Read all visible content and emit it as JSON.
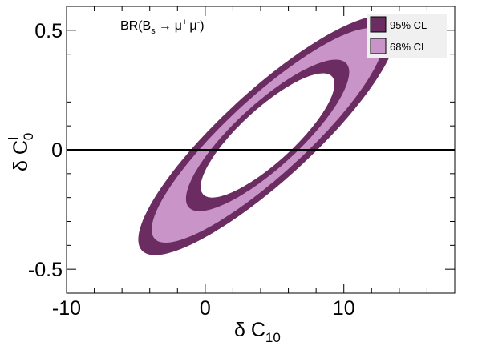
{
  "chart_data": {
    "type": "contour",
    "annotation": {
      "prefix": "BR(B",
      "sub": "s",
      "arrow": "→",
      "mu1": "μ",
      "sup1": "+",
      "mu2": "μ",
      "sup2": "-",
      "suffix": ")"
    },
    "xlabel": {
      "main": "δ C",
      "sub": "10"
    },
    "ylabel": {
      "main": "δ C",
      "sub": "0",
      "sup": "l"
    },
    "xlim": [
      -10,
      18
    ],
    "ylim": [
      -0.6,
      0.6
    ],
    "xticks": [
      -10,
      0,
      10
    ],
    "xtick_labels": [
      "-10",
      "0",
      "10"
    ],
    "yticks": [
      -0.5,
      0,
      0.5
    ],
    "ytick_labels": [
      "-0.5",
      "0",
      "0.5"
    ],
    "reference_line_y": 0,
    "legend": [
      {
        "label": "95% CL",
        "color": "#6b2c62"
      },
      {
        "label": "68% CL",
        "color": "#c994c7"
      }
    ],
    "regions": [
      {
        "name": "95% CL",
        "color": "#6b2c62",
        "center": [
          4.5,
          0.06
        ],
        "angle_deg": 42.5,
        "outer_ab": [
          12.3,
          3.23
        ],
        "inner_ab": [
          6.3,
          1.93
        ]
      },
      {
        "name": "68% CL",
        "color": "#c994c7",
        "center": [
          4.5,
          0.06
        ],
        "angle_deg": 42.5,
        "outer_ab": [
          11.05,
          2.8
        ],
        "inner_ab": [
          7.7,
          2.3
        ]
      }
    ]
  }
}
